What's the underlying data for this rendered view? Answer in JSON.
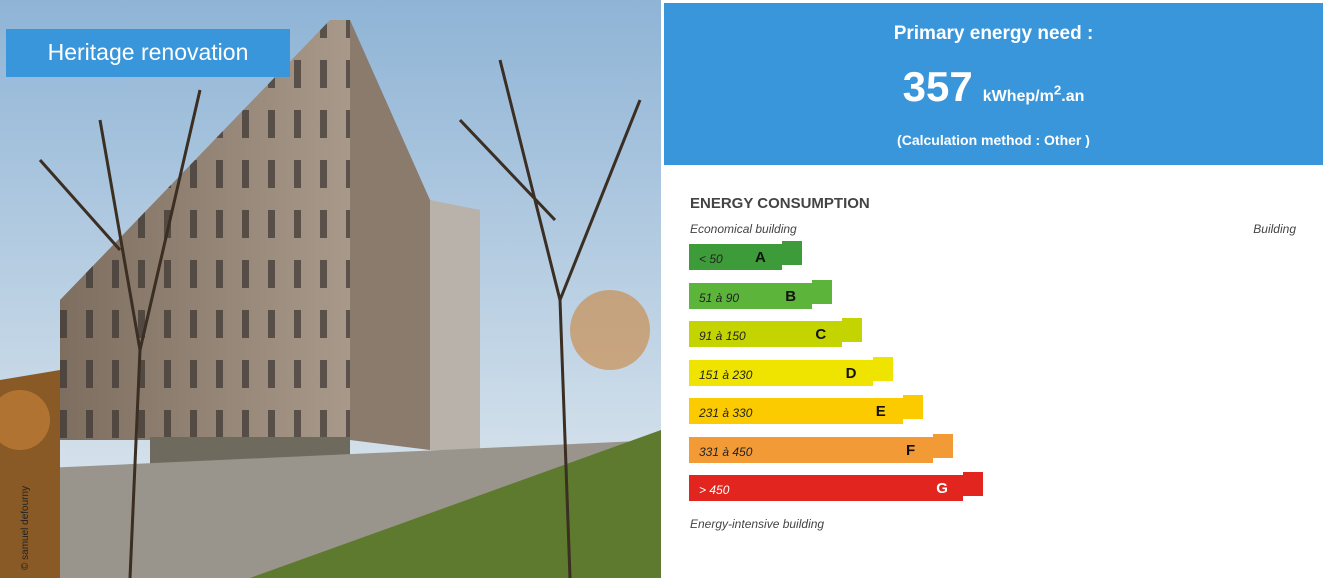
{
  "photo": {
    "tag": "Heritage renovation",
    "credit": "© samuel defourny"
  },
  "header": {
    "title": "Primary energy need :",
    "value": "357",
    "unit": "kWhep/m",
    "unit_sup": "2",
    "unit_suffix": ".an",
    "method": "(Calculation method : Other )"
  },
  "label": {
    "title": "ENERGY CONSUMPTION",
    "top_left": "Economical building",
    "top_right": "Building",
    "bottom": "Energy-intensive building",
    "classes": [
      {
        "range": "< 50",
        "letter": "A",
        "color": "#3d9b3a"
      },
      {
        "range": "51 à 90",
        "letter": "B",
        "color": "#5cb43b"
      },
      {
        "range": "91 à 150",
        "letter": "C",
        "color": "#c4d400"
      },
      {
        "range": "151 à 230",
        "letter": "D",
        "color": "#efe400"
      },
      {
        "range": "231 à 330",
        "letter": "E",
        "color": "#fbcb00"
      },
      {
        "range": "331 à 450",
        "letter": "F",
        "color": "#f29a35"
      },
      {
        "range": "> 450",
        "letter": "G",
        "color": "#e2261f"
      }
    ]
  }
}
